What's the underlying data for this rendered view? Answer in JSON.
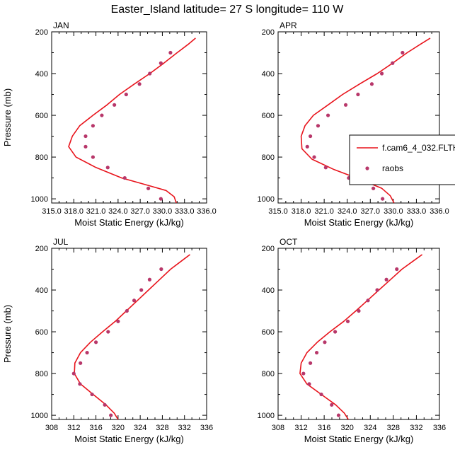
{
  "figure": {
    "title": "Easter_Island  latitude= 27 S longitude= 110 W"
  },
  "legend": {
    "model_label": "f.cam6_4_032.FLTH",
    "obs_label": "raobs"
  },
  "colors": {
    "model_line": "#e8141c",
    "obs_marker": "#b8376a",
    "axis": "#000000",
    "background": "#ffffff"
  },
  "chart_data": [
    {
      "type": "line",
      "panel_label": "JAN",
      "xlabel": "Moist Static Energy (kJ/kg)",
      "ylabel": "Pressure (mb)",
      "xlim": [
        315,
        336
      ],
      "ylim": [
        1020,
        200
      ],
      "y_inverted": true,
      "xticks": [
        "315.0",
        "318.0",
        "321.0",
        "324.0",
        "327.0",
        "330.0",
        "333.0",
        "336.0"
      ],
      "yticks": [
        "200",
        "400",
        "600",
        "800",
        "1000"
      ],
      "series": [
        {
          "name": "f.cam6_4_032.FLTH",
          "kind": "line",
          "x": [
            334.5,
            333.5,
            332.0,
            330.2,
            328.3,
            326.2,
            324.2,
            322.5,
            320.6,
            318.8,
            317.8,
            317.3,
            318.3,
            321.0,
            324.5,
            328.0,
            330.5,
            331.6,
            331.9
          ],
          "y": [
            230,
            260,
            300,
            350,
            400,
            450,
            500,
            550,
            600,
            650,
            700,
            750,
            800,
            850,
            900,
            935,
            960,
            990,
            1020
          ]
        },
        {
          "name": "raobs",
          "kind": "scatter",
          "x": [
            331.1,
            329.8,
            328.3,
            326.9,
            325.1,
            323.5,
            321.8,
            320.6,
            319.6,
            319.6,
            320.6,
            322.6,
            324.9,
            328.1,
            329.8
          ],
          "y": [
            300,
            350,
            400,
            450,
            500,
            550,
            600,
            650,
            700,
            750,
            800,
            850,
            900,
            950,
            1000
          ]
        }
      ]
    },
    {
      "type": "line",
      "panel_label": "APR",
      "xlabel": "Moist Static Energy (kJ/kg)",
      "ylabel": "",
      "xlim": [
        315,
        336
      ],
      "ylim": [
        1020,
        200
      ],
      "y_inverted": true,
      "xticks": [
        "315.0",
        "318.0",
        "321.0",
        "324.0",
        "327.0",
        "330.0",
        "333.0",
        "336.0"
      ],
      "yticks": [
        "200",
        "400",
        "600",
        "800",
        "1000"
      ],
      "series": [
        {
          "name": "f.cam6_4_032.FLTH",
          "kind": "line",
          "x": [
            334.8,
            333.5,
            331.8,
            329.9,
            327.9,
            325.6,
            323.4,
            321.5,
            319.6,
            318.5,
            318.0,
            318.1,
            319.4,
            322.3,
            325.9,
            328.5,
            329.6,
            330.1
          ],
          "y": [
            230,
            260,
            300,
            350,
            400,
            450,
            500,
            550,
            600,
            650,
            700,
            760,
            810,
            860,
            910,
            950,
            985,
            1020
          ]
        },
        {
          "name": "raobs",
          "kind": "scatter",
          "x": [
            331.2,
            329.9,
            328.5,
            327.2,
            325.4,
            323.8,
            321.5,
            320.2,
            319.2,
            318.8,
            319.7,
            321.2,
            324.2,
            327.4,
            328.6
          ],
          "y": [
            300,
            350,
            400,
            450,
            500,
            550,
            600,
            650,
            700,
            750,
            800,
            850,
            900,
            950,
            1000
          ]
        }
      ]
    },
    {
      "type": "line",
      "panel_label": "JUL",
      "xlabel": "Moist Static Energy (kJ/kg)",
      "ylabel": "Pressure (mb)",
      "xlim": [
        308,
        336
      ],
      "ylim": [
        1020,
        200
      ],
      "y_inverted": true,
      "xticks": [
        "308",
        "312",
        "316",
        "320",
        "324",
        "328",
        "332",
        "336"
      ],
      "yticks": [
        "200",
        "400",
        "600",
        "800",
        "1000"
      ],
      "series": [
        {
          "name": "f.cam6_4_032.FLTH",
          "kind": "line",
          "x": [
            333.0,
            331.5,
            329.5,
            327.5,
            325.5,
            323.5,
            321.5,
            319.5,
            317.2,
            315.0,
            313.2,
            312.2,
            312.1,
            313.2,
            315.5,
            317.8,
            319.3,
            320.0
          ],
          "y": [
            230,
            260,
            300,
            350,
            400,
            450,
            500,
            550,
            600,
            650,
            700,
            750,
            800,
            850,
            900,
            950,
            990,
            1020
          ]
        },
        {
          "name": "raobs",
          "kind": "scatter",
          "x": [
            327.8,
            325.7,
            324.2,
            322.9,
            321.6,
            320.0,
            318.2,
            316.0,
            314.4,
            313.2,
            312.0,
            313.1,
            315.3,
            317.6,
            318.7
          ],
          "y": [
            300,
            350,
            400,
            450,
            500,
            550,
            600,
            650,
            700,
            750,
            800,
            850,
            900,
            950,
            1000
          ]
        }
      ]
    },
    {
      "type": "line",
      "panel_label": "OCT",
      "xlabel": "Moist Static Energy (kJ/kg)",
      "ylabel": "",
      "xlim": [
        308,
        336
      ],
      "ylim": [
        1020,
        200
      ],
      "y_inverted": true,
      "xticks": [
        "308",
        "312",
        "316",
        "320",
        "324",
        "328",
        "332",
        "336"
      ],
      "yticks": [
        "200",
        "400",
        "600",
        "800",
        "1000"
      ],
      "series": [
        {
          "name": "f.cam6_4_032.FLTH",
          "kind": "line",
          "x": [
            333.0,
            331.5,
            329.5,
            327.5,
            325.5,
            323.5,
            321.5,
            319.4,
            317.0,
            314.8,
            313.0,
            312.0,
            311.8,
            313.0,
            315.5,
            318.0,
            319.5,
            320.2
          ],
          "y": [
            230,
            260,
            300,
            350,
            400,
            450,
            500,
            550,
            600,
            650,
            700,
            750,
            800,
            850,
            900,
            950,
            990,
            1020
          ]
        },
        {
          "name": "raobs",
          "kind": "scatter",
          "x": [
            328.6,
            326.8,
            325.2,
            323.6,
            322.0,
            320.1,
            317.9,
            316.1,
            314.7,
            313.6,
            312.4,
            313.4,
            315.5,
            317.3,
            318.5
          ],
          "y": [
            300,
            350,
            400,
            450,
            500,
            550,
            600,
            650,
            700,
            750,
            800,
            850,
            900,
            950,
            1000
          ]
        }
      ]
    }
  ]
}
